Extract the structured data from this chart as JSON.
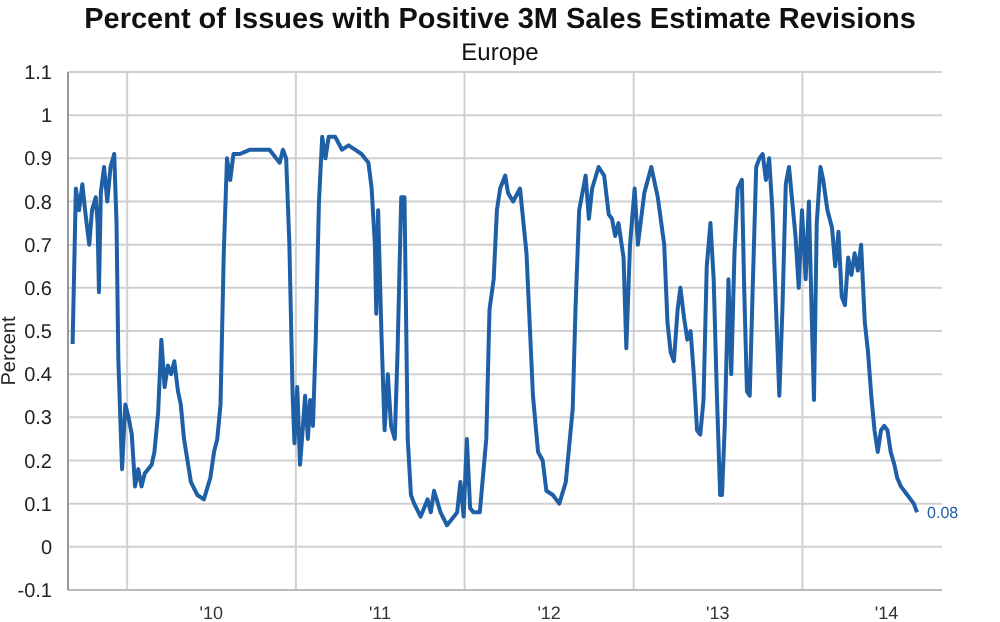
{
  "chart_data": {
    "type": "line",
    "title": "Percent of Issues with Positive 3M Sales Estimate Revisions",
    "subtitle": "Europe",
    "ylabel": "Percent",
    "x": [
      "2009-09-05",
      "2009-09-12",
      "2009-09-19",
      "2009-09-26",
      "2009-10-03",
      "2009-10-11",
      "2009-10-17",
      "2009-10-25",
      "2009-10-29",
      "2009-11-01",
      "2009-11-05",
      "2009-11-12",
      "2009-11-19",
      "2009-11-26",
      "2009-12-04",
      "2009-12-09",
      "2009-12-13",
      "2009-12-21",
      "2009-12-28",
      "2010-01-04",
      "2010-01-11",
      "2010-01-18",
      "2010-01-25",
      "2010-02-01",
      "2010-02-08",
      "2010-02-23",
      "2010-03-01",
      "2010-03-09",
      "2010-03-16",
      "2010-03-23",
      "2010-03-30",
      "2010-04-06",
      "2010-04-13",
      "2010-04-21",
      "2010-04-27",
      "2010-05-04",
      "2010-05-19",
      "2010-06-02",
      "2010-06-16",
      "2010-06-30",
      "2010-07-08",
      "2010-07-15",
      "2010-07-22",
      "2010-07-29",
      "2010-08-05",
      "2010-08-12",
      "2010-08-19",
      "2010-09-02",
      "2010-09-24",
      "2010-10-15",
      "2010-11-05",
      "2010-11-27",
      "2010-12-04",
      "2010-12-11",
      "2010-12-18",
      "2010-12-25",
      "2010-12-29",
      "2011-01-04",
      "2011-01-10",
      "2011-01-15",
      "2011-01-21",
      "2011-01-27",
      "2011-02-01",
      "2011-02-07",
      "2011-02-13",
      "2011-02-20",
      "2011-02-27",
      "2011-03-06",
      "2011-03-13",
      "2011-03-27",
      "2011-04-11",
      "2011-04-25",
      "2011-05-09",
      "2011-05-23",
      "2011-06-07",
      "2011-06-14",
      "2011-06-21",
      "2011-06-24",
      "2011-06-28",
      "2011-07-05",
      "2011-07-12",
      "2011-07-19",
      "2011-07-26",
      "2011-08-03",
      "2011-08-09",
      "2011-08-17",
      "2011-08-24",
      "2011-08-31",
      "2011-09-07",
      "2011-09-14",
      "2011-09-28",
      "2011-10-13",
      "2011-10-20",
      "2011-10-27",
      "2011-11-10",
      "2011-11-24",
      "2011-12-09",
      "2011-12-16",
      "2011-12-23",
      "2011-12-30",
      "2012-01-06",
      "2012-01-13",
      "2012-01-20",
      "2012-02-03",
      "2012-02-17",
      "2012-02-24",
      "2012-03-04",
      "2012-03-11",
      "2012-03-18",
      "2012-03-29",
      "2012-04-04",
      "2012-04-15",
      "2012-04-30",
      "2012-05-14",
      "2012-05-28",
      "2012-06-08",
      "2012-06-18",
      "2012-06-26",
      "2012-07-10",
      "2012-07-24",
      "2012-08-07",
      "2012-08-22",
      "2012-08-28",
      "2012-09-05",
      "2012-09-12",
      "2012-09-19",
      "2012-09-26",
      "2012-10-03",
      "2012-10-17",
      "2012-10-29",
      "2012-11-08",
      "2012-11-15",
      "2012-11-22",
      "2012-11-29",
      "2012-12-10",
      "2012-12-16",
      "2012-12-24",
      "2013-01-03",
      "2013-01-10",
      "2013-01-24",
      "2013-02-08",
      "2013-02-22",
      "2013-03-08",
      "2013-03-15",
      "2013-03-22",
      "2013-03-29",
      "2013-04-06",
      "2013-04-12",
      "2013-04-20",
      "2013-04-27",
      "2013-05-04",
      "2013-05-11",
      "2013-05-18",
      "2013-05-25",
      "2013-06-01",
      "2013-06-08",
      "2013-06-16",
      "2013-06-23",
      "2013-06-30",
      "2013-07-07",
      "2013-07-11",
      "2013-07-17",
      "2013-07-25",
      "2013-07-31",
      "2013-08-07",
      "2013-08-14",
      "2013-08-23",
      "2013-08-28",
      "2013-09-03",
      "2013-09-09",
      "2013-09-16",
      "2013-09-23",
      "2013-09-30",
      "2013-10-07",
      "2013-10-14",
      "2013-10-21",
      "2013-10-28",
      "2013-11-05",
      "2013-11-12",
      "2013-11-19",
      "2013-11-26",
      "2013-12-03",
      "2013-12-10",
      "2013-12-17",
      "2013-12-24",
      "2013-12-31",
      "2014-01-08",
      "2014-01-15",
      "2014-01-22",
      "2014-01-26",
      "2014-02-01",
      "2014-02-09",
      "2014-02-15",
      "2014-02-24",
      "2014-03-06",
      "2014-03-13",
      "2014-03-20",
      "2014-03-27",
      "2014-04-03",
      "2014-04-10",
      "2014-04-17",
      "2014-04-24",
      "2014-05-01",
      "2014-05-08",
      "2014-05-16",
      "2014-05-23",
      "2014-05-30",
      "2014-06-06",
      "2014-06-13",
      "2014-06-20",
      "2014-06-27",
      "2014-07-04",
      "2014-07-11",
      "2014-07-19",
      "2014-07-25",
      "2014-08-02",
      "2014-08-16",
      "2014-08-30",
      "2014-09-06"
    ],
    "series": [
      {
        "color": "#1f5fa6",
        "values": [
          0.47,
          0.83,
          0.78,
          0.84,
          0.77,
          0.7,
          0.78,
          0.81,
          0.75,
          0.59,
          0.82,
          0.88,
          0.8,
          0.88,
          0.91,
          0.75,
          0.43,
          0.18,
          0.33,
          0.3,
          0.26,
          0.14,
          0.18,
          0.14,
          0.17,
          0.19,
          0.22,
          0.31,
          0.48,
          0.37,
          0.42,
          0.4,
          0.43,
          0.36,
          0.33,
          0.25,
          0.15,
          0.12,
          0.11,
          0.16,
          0.22,
          0.25,
          0.33,
          0.68,
          0.9,
          0.85,
          0.91,
          0.91,
          0.92,
          0.92,
          0.92,
          0.89,
          0.92,
          0.9,
          0.7,
          0.35,
          0.24,
          0.37,
          0.19,
          0.26,
          0.35,
          0.25,
          0.34,
          0.28,
          0.48,
          0.8,
          0.95,
          0.9,
          0.95,
          0.95,
          0.92,
          0.93,
          0.92,
          0.91,
          0.89,
          0.83,
          0.7,
          0.54,
          0.78,
          0.5,
          0.27,
          0.4,
          0.28,
          0.25,
          0.45,
          0.81,
          0.81,
          0.25,
          0.12,
          0.1,
          0.07,
          0.11,
          0.08,
          0.13,
          0.08,
          0.05,
          0.07,
          0.08,
          0.15,
          0.07,
          0.25,
          0.09,
          0.08,
          0.08,
          0.25,
          0.55,
          0.62,
          0.78,
          0.83,
          0.86,
          0.82,
          0.8,
          0.83,
          0.68,
          0.35,
          0.22,
          0.2,
          0.13,
          0.12,
          0.1,
          0.15,
          0.32,
          0.55,
          0.78,
          0.82,
          0.86,
          0.76,
          0.83,
          0.88,
          0.86,
          0.77,
          0.76,
          0.72,
          0.75,
          0.67,
          0.46,
          0.7,
          0.83,
          0.7,
          0.82,
          0.88,
          0.81,
          0.7,
          0.52,
          0.45,
          0.43,
          0.55,
          0.6,
          0.53,
          0.48,
          0.5,
          0.4,
          0.27,
          0.26,
          0.34,
          0.65,
          0.75,
          0.62,
          0.35,
          0.12,
          0.12,
          0.28,
          0.62,
          0.4,
          0.68,
          0.83,
          0.85,
          0.6,
          0.36,
          0.35,
          0.62,
          0.88,
          0.9,
          0.91,
          0.85,
          0.9,
          0.78,
          0.55,
          0.35,
          0.56,
          0.84,
          0.88,
          0.8,
          0.72,
          0.6,
          0.78,
          0.62,
          0.8,
          0.5,
          0.34,
          0.75,
          0.88,
          0.85,
          0.78,
          0.74,
          0.65,
          0.73,
          0.58,
          0.56,
          0.67,
          0.63,
          0.68,
          0.64,
          0.7,
          0.52,
          0.45,
          0.35,
          0.27,
          0.22,
          0.27,
          0.28,
          0.27,
          0.22,
          0.19,
          0.16,
          0.14,
          0.12,
          0.1,
          0.08
        ]
      }
    ],
    "xlim": [
      "2009-08-26",
      "2014-10-30"
    ],
    "xticks": [
      {
        "value": "2010-01-01",
        "label": null
      },
      {
        "value": "2010-07-02",
        "label": "'10"
      },
      {
        "value": "2011-01-01",
        "label": null
      },
      {
        "value": "2011-07-02",
        "label": "'11"
      },
      {
        "value": "2012-01-01",
        "label": null
      },
      {
        "value": "2012-07-02",
        "label": "'12"
      },
      {
        "value": "2013-01-01",
        "label": null
      },
      {
        "value": "2013-07-02",
        "label": "'13"
      },
      {
        "value": "2014-01-01",
        "label": null
      },
      {
        "value": "2014-07-02",
        "label": "'14"
      }
    ],
    "ylim": [
      -0.1,
      1.1
    ],
    "yticks": [
      -0.1,
      0,
      0.1,
      0.2,
      0.3,
      0.4,
      0.5,
      0.6,
      0.7,
      0.8,
      0.9,
      1,
      1.1
    ],
    "grid": true,
    "marker": "none",
    "line_style": "solid",
    "annotations": [
      {
        "text": "0.08",
        "x": "2014-09-06",
        "y": 0.08
      }
    ]
  }
}
